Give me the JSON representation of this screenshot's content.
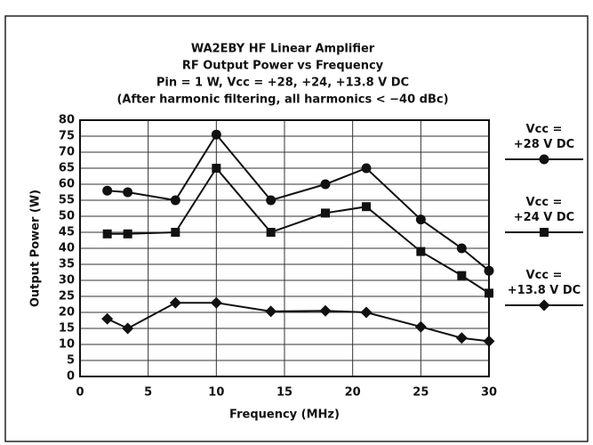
{
  "chart_data": {
    "type": "line",
    "title": [
      "WA2EBY HF Linear Amplifier",
      "RF Output Power vs Frequency",
      "Pin = 1 W, Vcc = +28, +24, +13.8 V DC",
      "(After harmonic filtering, all harmonics < −40 dBc)"
    ],
    "x_label": "Frequency (MHz)",
    "y_label": "Output Power (W)",
    "x": [
      2,
      3.5,
      7,
      10,
      14,
      18,
      21,
      25,
      28,
      30
    ],
    "series": [
      {
        "name": "Vcc = +28 V DC",
        "color": "#111111",
        "marker": "circle",
        "values": [
          58,
          57.5,
          55,
          75.5,
          55,
          60,
          65,
          49,
          40,
          33
        ]
      },
      {
        "name": "Vcc = +24 V DC",
        "color": "#111111",
        "marker": "square",
        "values": [
          44.5,
          44.5,
          45,
          65,
          45,
          51,
          53,
          39,
          31.5,
          26
        ]
      },
      {
        "name": "Vcc = +13.8 V DC",
        "color": "#111111",
        "marker": "diamond",
        "values": [
          18,
          15,
          23,
          23,
          20.3,
          20.5,
          20,
          15.5,
          12,
          11
        ]
      }
    ],
    "xlim": [
      0,
      30
    ],
    "xticks": [
      0,
      5,
      10,
      15,
      20,
      25,
      30
    ],
    "ylim": [
      0,
      80
    ],
    "yticks": [
      0,
      5,
      10,
      15,
      20,
      25,
      30,
      35,
      40,
      45,
      50,
      55,
      60,
      65,
      70,
      75,
      80
    ],
    "grid": true,
    "legend": "right"
  }
}
